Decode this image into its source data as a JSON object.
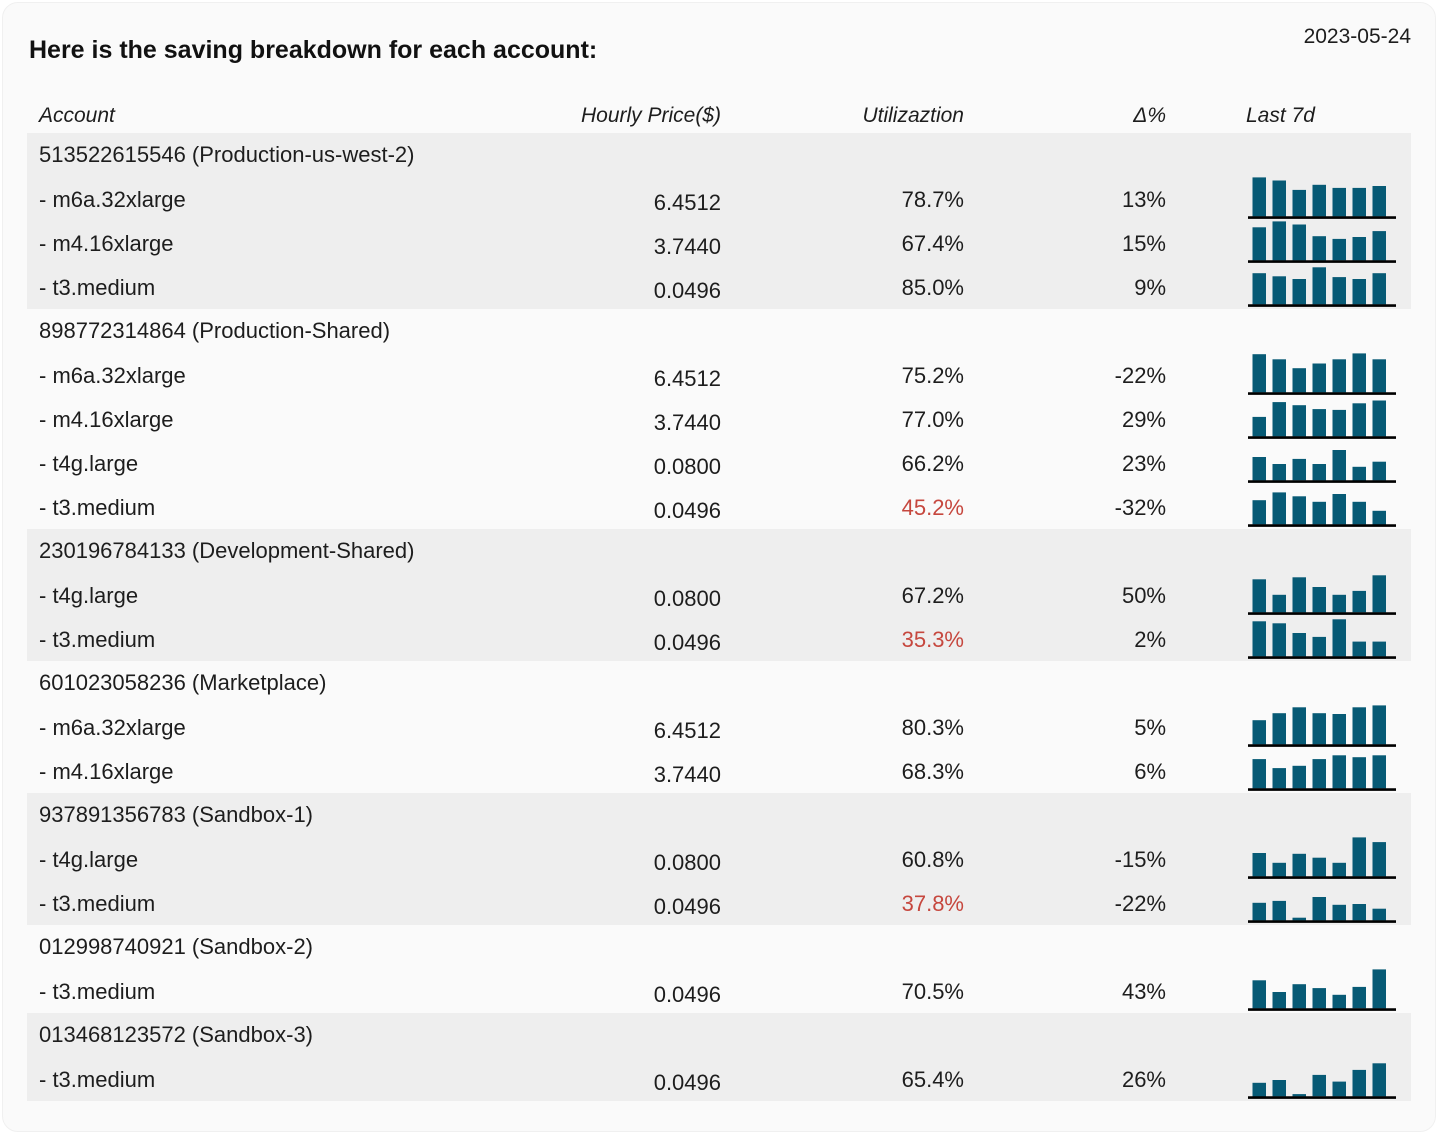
{
  "header": {
    "title": "Here is the saving breakdown for each account:",
    "date": "2023-05-24"
  },
  "columns": {
    "account": "Account",
    "hourly_price": "Hourly Price($)",
    "utilization": "Utilizaztion",
    "delta": "Δ%",
    "last7d": "Last 7d"
  },
  "colors": {
    "bar": "#075a75",
    "alert": "#c6473e",
    "stripe": "#eeeeee",
    "card_bg": "#fafafa",
    "text": "#1d1d1d",
    "baseline": "#000000"
  },
  "chart_data": {
    "type": "table",
    "title": "Here is the saving breakdown for each account:",
    "date": "2023-05-24",
    "columns": [
      "Account",
      "Hourly Price($)",
      "Utilizaztion",
      "Δ%",
      "Last 7d"
    ],
    "sparkline_note": "Last 7d column shows 7 daily bars; values are relative heights 0-100 estimated from pixels",
    "sections": [
      {
        "account_id": "513522615546",
        "account_name": "Production-us-west-2",
        "striped": true,
        "rows": [
          {
            "instance": "m6a.32xlarge",
            "hourly_price": 6.4512,
            "utilization_pct": 78.7,
            "utilization_low": false,
            "delta_pct": 13,
            "last7d_bars": [
              100,
              92,
              68,
              81,
              73,
              73,
              78
            ]
          },
          {
            "instance": "m4.16xlarge",
            "hourly_price": 3.744,
            "utilization_pct": 67.4,
            "utilization_low": false,
            "delta_pct": 15,
            "last7d_bars": [
              85,
              100,
              92,
              62,
              55,
              60,
              75
            ]
          },
          {
            "instance": "t3.medium",
            "hourly_price": 0.0496,
            "utilization_pct": 85.0,
            "utilization_low": false,
            "delta_pct": 9,
            "last7d_bars": [
              80,
              72,
              65,
              95,
              70,
              65,
              80
            ]
          }
        ]
      },
      {
        "account_id": "898772314864",
        "account_name": "Production-Shared",
        "striped": false,
        "rows": [
          {
            "instance": "m6a.32xlarge",
            "hourly_price": 6.4512,
            "utilization_pct": 75.2,
            "utilization_low": false,
            "delta_pct": -22,
            "last7d_bars": [
              98,
              85,
              62,
              74,
              85,
              100,
              85
            ]
          },
          {
            "instance": "m4.16xlarge",
            "hourly_price": 3.744,
            "utilization_pct": 77.0,
            "utilization_low": false,
            "delta_pct": 29,
            "last7d_bars": [
              50,
              88,
              80,
              70,
              68,
              85,
              92
            ]
          },
          {
            "instance": "t4g.large",
            "hourly_price": 0.08,
            "utilization_pct": 66.2,
            "utilization_low": false,
            "delta_pct": 23,
            "last7d_bars": [
              60,
              42,
              55,
              42,
              78,
              35,
              48
            ]
          },
          {
            "instance": "t3.medium",
            "hourly_price": 0.0496,
            "utilization_pct": 45.2,
            "utilization_low": true,
            "delta_pct": -32,
            "last7d_bars": [
              62,
              82,
              72,
              58,
              78,
              58,
              35
            ]
          }
        ]
      },
      {
        "account_id": "230196784133",
        "account_name": "Development-Shared",
        "striped": true,
        "rows": [
          {
            "instance": "t4g.large",
            "hourly_price": 0.08,
            "utilization_pct": 67.2,
            "utilization_low": false,
            "delta_pct": 50,
            "last7d_bars": [
              85,
              45,
              90,
              65,
              45,
              55,
              95
            ]
          },
          {
            "instance": "t3.medium",
            "hourly_price": 0.0496,
            "utilization_pct": 35.3,
            "utilization_low": true,
            "delta_pct": 2,
            "last7d_bars": [
              90,
              85,
              60,
              50,
              95,
              38,
              38
            ]
          }
        ]
      },
      {
        "account_id": "601023058236",
        "account_name": "Marketplace",
        "striped": false,
        "rows": [
          {
            "instance": "m6a.32xlarge",
            "hourly_price": 6.4512,
            "utilization_pct": 80.3,
            "utilization_low": false,
            "delta_pct": 5,
            "last7d_bars": [
              62,
              80,
              95,
              80,
              78,
              95,
              100
            ]
          },
          {
            "instance": "m4.16xlarge",
            "hourly_price": 3.744,
            "utilization_pct": 68.3,
            "utilization_low": false,
            "delta_pct": 6,
            "last7d_bars": [
              75,
              52,
              58,
              75,
              85,
              80,
              85
            ]
          }
        ]
      },
      {
        "account_id": "937891356783",
        "account_name": "Sandbox-1",
        "striped": true,
        "rows": [
          {
            "instance": "t4g.large",
            "hourly_price": 0.08,
            "utilization_pct": 60.8,
            "utilization_low": false,
            "delta_pct": -15,
            "last7d_bars": [
              60,
              35,
              58,
              48,
              35,
              100,
              88
            ]
          },
          {
            "instance": "t3.medium",
            "hourly_price": 0.0496,
            "utilization_pct": 37.8,
            "utilization_low": true,
            "delta_pct": -22,
            "last7d_bars": [
              45,
              50,
              7,
              60,
              40,
              42,
              30
            ]
          }
        ]
      },
      {
        "account_id": "012998740921",
        "account_name": "Sandbox-2",
        "striped": false,
        "rows": [
          {
            "instance": "t3.medium",
            "hourly_price": 0.0496,
            "utilization_pct": 70.5,
            "utilization_low": false,
            "delta_pct": 43,
            "last7d_bars": [
              72,
              42,
              62,
              52,
              35,
              55,
              100
            ]
          }
        ]
      },
      {
        "account_id": "013468123572",
        "account_name": "Sandbox-3",
        "striped": true,
        "rows": [
          {
            "instance": "t3.medium",
            "hourly_price": 0.0496,
            "utilization_pct": 65.4,
            "utilization_low": false,
            "delta_pct": 26,
            "last7d_bars": [
              35,
              42,
              6,
              55,
              38,
              68,
              85
            ]
          }
        ]
      }
    ]
  }
}
